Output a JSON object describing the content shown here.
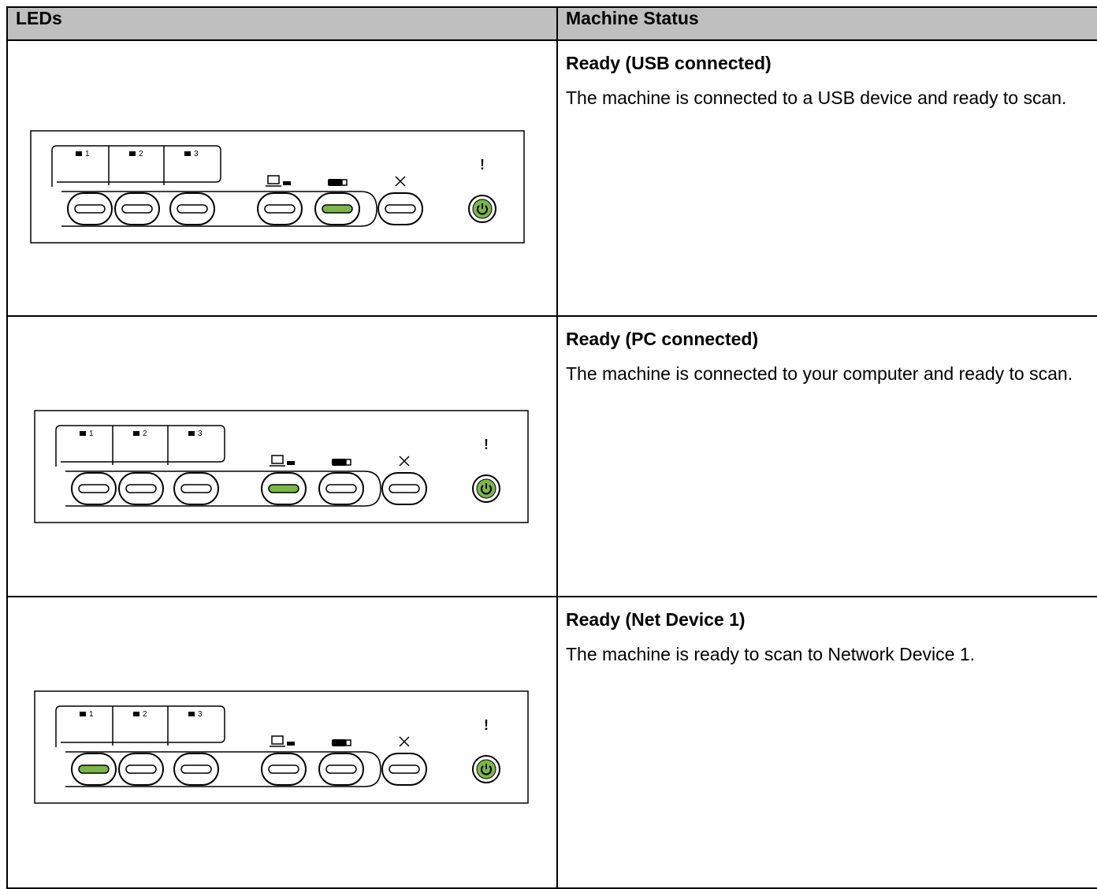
{
  "table": {
    "header": [
      "LEDs",
      "Machine Status"
    ],
    "panel_labels": [
      "1",
      "2",
      "3"
    ],
    "rows": [
      {
        "status_title": "Ready (USB connected)",
        "status_text": "The machine is connected to a USB device and ready to scan."
      },
      {
        "status_title": "Ready (PC connected)",
        "status_text": "The machine is connected to your computer and ready to scan."
      },
      {
        "status_title": "Ready (Net Device 1)",
        "status_text": "The machine is ready to scan to Network Device 1."
      }
    ]
  }
}
